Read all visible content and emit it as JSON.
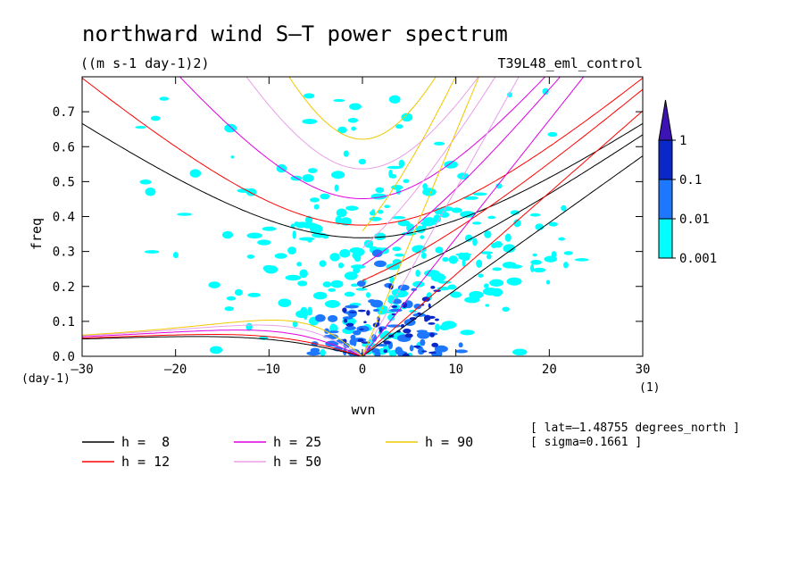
{
  "chart_data": {
    "type": "heatmap",
    "title": "northward wind S–T power spectrum",
    "subtitle": "((m s-1 day-1)2)",
    "run_label": "T39L48_eml_control",
    "xlabel": "wvn",
    "ylabel": "freq",
    "x_unit": "(1)",
    "y_unit": "(day-1)",
    "xlim": [
      -30,
      30
    ],
    "ylim": [
      0,
      0.8
    ],
    "x_ticks": [
      "–30",
      "–20",
      "–10",
      "0",
      "10",
      "20",
      "30"
    ],
    "x_tick_values": [
      -30,
      -20,
      -10,
      0,
      10,
      20,
      30
    ],
    "y_ticks": [
      "0.0",
      "0.1",
      "0.2",
      "0.3",
      "0.4",
      "0.5",
      "0.6",
      "0.7"
    ],
    "y_tick_values": [
      0,
      0.1,
      0.2,
      0.3,
      0.4,
      0.5,
      0.6,
      0.7
    ],
    "colorbar": {
      "levels": [
        "0.001",
        "0.01",
        "0.1",
        "1"
      ],
      "colors": [
        "#00ffff",
        "#1e78ff",
        "#0a28c8",
        "#3c14b4"
      ]
    },
    "series": [
      {
        "name": "h =  8",
        "color": "#000000",
        "h": 8
      },
      {
        "name": "h = 12",
        "color": "#ff0000",
        "h": 12
      },
      {
        "name": "h = 25",
        "color": "#e000e0",
        "h": 25
      },
      {
        "name": "h = 50",
        "color": "#e8a0e8",
        "h": 50
      },
      {
        "name": "h = 90",
        "color": "#f0c800",
        "h": 90
      }
    ],
    "info": [
      "[ lat=–1.48755 degrees_north ]",
      "[ sigma=0.1661 ]"
    ]
  }
}
